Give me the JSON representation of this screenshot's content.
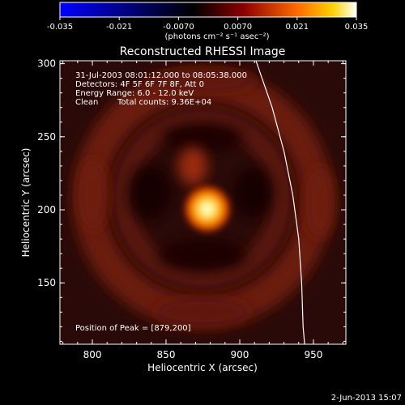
{
  "chart_data": {
    "type": "heatmap",
    "title": "Reconstructed RHESSI Image",
    "xlabel": "Heliocentric X (arcsec)",
    "ylabel": "Heliocentric Y (arcsec)",
    "xlim": [
      778,
      972
    ],
    "ylim": [
      108,
      302
    ],
    "x_ticks": [
      800,
      850,
      900,
      950
    ],
    "y_ticks": [
      150,
      200,
      250,
      300
    ],
    "colorbar": {
      "range": [
        -0.035,
        0.035
      ],
      "ticks": [
        "-0.035",
        "-0.021",
        "-0.0070",
        "0.0070",
        "0.021",
        "0.035"
      ],
      "unit_label": "(photons cm⁻² s⁻¹ asec⁻²)",
      "colors": [
        "#0000ff",
        "#000000",
        "#800000",
        "#ff8000",
        "#ffffff"
      ]
    },
    "annotations": {
      "time_range": "31-Jul-2003 08:01:12.000 to 08:05:38.000",
      "detectors": "Detectors: 4F 5F 6F 7F 8F, Att 0",
      "energy": "Energy Range: 6.0 - 12.0 keV",
      "clean_method": "Clean",
      "total_counts": "Total counts: 9.36E+04",
      "peak": "Position of Peak = [879,200]"
    },
    "peak_position": [
      879,
      200
    ],
    "limb_curve": [
      [
        911,
        302
      ],
      [
        922,
        270
      ],
      [
        930,
        240
      ],
      [
        936,
        210
      ],
      [
        940,
        180
      ],
      [
        942,
        150
      ],
      [
        943,
        120
      ],
      [
        944,
        108
      ]
    ],
    "footer": "2-Jun-2013 15:07"
  }
}
